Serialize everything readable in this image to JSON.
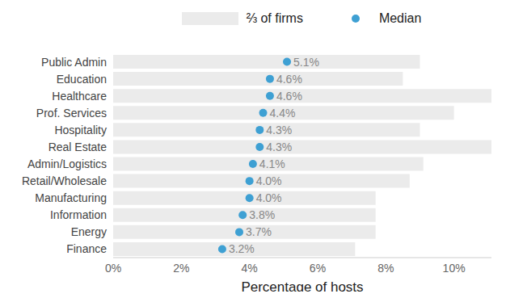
{
  "chart_data": {
    "type": "bar",
    "orientation": "horizontal",
    "legend": "top",
    "grid": false,
    "xlabel": "Percentage of hosts",
    "categories": [
      "Public Admin",
      "Education",
      "Healthcare",
      "Prof. Services",
      "Hospitality",
      "Real Estate",
      "Admin/Logistics",
      "Retail/Wholesale",
      "Manufacturing",
      "Information",
      "Energy",
      "Finance"
    ],
    "xlim": [
      0,
      11.1
    ],
    "xticks": [
      {
        "value": 0,
        "label": "0%"
      },
      {
        "value": 2,
        "label": "2%"
      },
      {
        "value": 4,
        "label": "4%"
      },
      {
        "value": 6,
        "label": "6%"
      },
      {
        "value": 8,
        "label": "8%"
      },
      {
        "value": 10,
        "label": "10%"
      }
    ],
    "series": [
      {
        "name": "⅔ of firms",
        "type": "bar",
        "color": "#ebebeb",
        "values": [
          9.0,
          8.5,
          11.1,
          10.0,
          9.0,
          11.1,
          9.1,
          8.7,
          7.7,
          7.7,
          7.7,
          7.1
        ]
      },
      {
        "name": "Median",
        "type": "scatter",
        "marker": "circle",
        "color": "#3ea0d3",
        "data_labels": true,
        "values": [
          5.1,
          4.6,
          4.6,
          4.4,
          4.3,
          4.3,
          4.1,
          4.0,
          4.0,
          3.8,
          3.7,
          3.2
        ],
        "value_labels": [
          "5.1%",
          "4.6%",
          "4.6%",
          "4.4%",
          "4.3%",
          "4.3%",
          "4.1%",
          "4.0%",
          "4.0%",
          "3.8%",
          "3.7%",
          "3.2%"
        ]
      }
    ]
  }
}
